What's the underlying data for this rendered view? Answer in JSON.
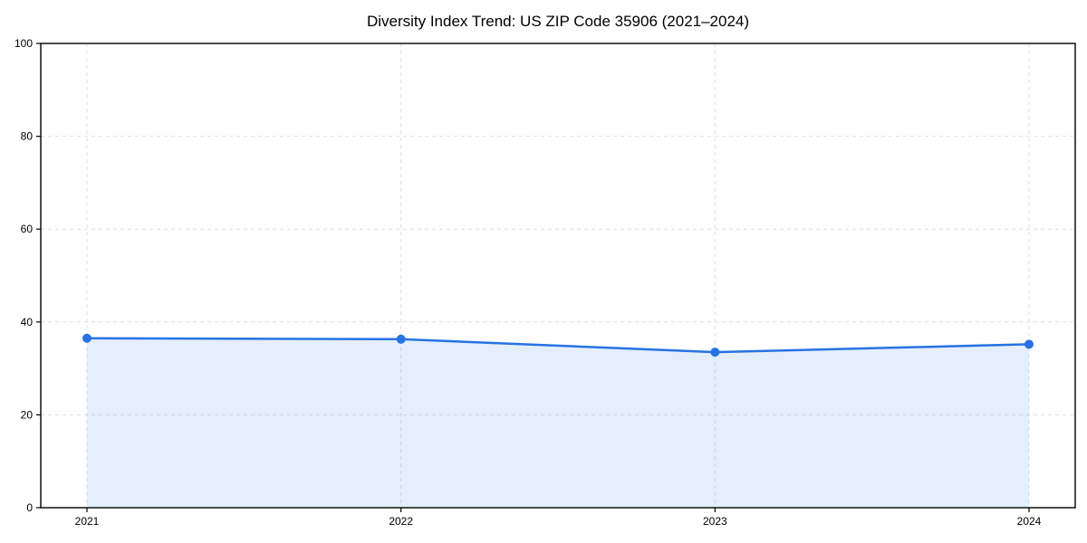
{
  "page": {
    "background": "#ffffff"
  },
  "chart_data": {
    "type": "area",
    "title": "Diversity Index Trend: US ZIP Code 35906 (2021–2024)",
    "categories": [
      "2021",
      "2022",
      "2023",
      "2024"
    ],
    "series": [
      {
        "name": "Diversity Index",
        "values": [
          36.5,
          36.3,
          33.5,
          35.2
        ]
      }
    ],
    "xlabel": "",
    "ylabel": "",
    "ylim": [
      0,
      100
    ],
    "yticks": [
      0,
      20,
      40,
      60,
      80,
      100
    ],
    "grid": "dashed",
    "legend_position": "none",
    "colors": {
      "line": "#2673e3",
      "marker": "#2673e3",
      "fill": "#2673e3",
      "fill_opacity": 0.12,
      "grid": "#e0e0e0",
      "axis": "#000000",
      "tick_text": "#000000"
    }
  }
}
